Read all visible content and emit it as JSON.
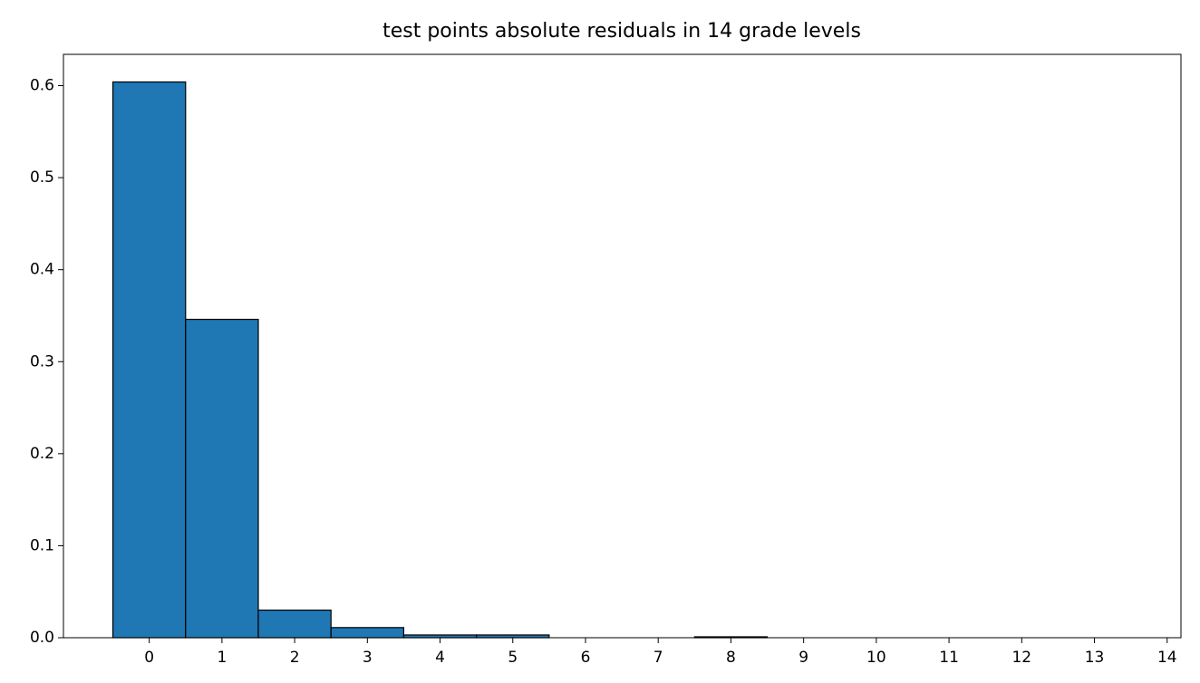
{
  "chart_data": {
    "type": "histogram",
    "title": "test points absolute residuals in 14 grade levels",
    "bins": [
      -0.5,
      0.5,
      1.5,
      2.5,
      3.5,
      4.5,
      5.5,
      6.5,
      7.5,
      8.5,
      9.5,
      10.5,
      11.5,
      12.5,
      13.5
    ],
    "values": [
      0.604,
      0.346,
      0.03,
      0.011,
      0.003,
      0.003,
      0,
      0,
      0.001,
      0,
      0,
      0,
      0,
      0
    ],
    "color": "#1f77b4",
    "edgecolor": "#000000",
    "xlim": [
      -1.18,
      14.19
    ],
    "xticks": [
      0,
      1,
      2,
      3,
      4,
      5,
      6,
      7,
      8,
      9,
      10,
      11,
      12,
      13,
      14
    ],
    "ylim": [
      0,
      0.634
    ],
    "yticks": [
      {
        "value": 0,
        "label": "0.0"
      },
      0.1,
      0.2,
      0.3,
      0.4,
      0.5,
      0.6
    ],
    "grid": false
  }
}
